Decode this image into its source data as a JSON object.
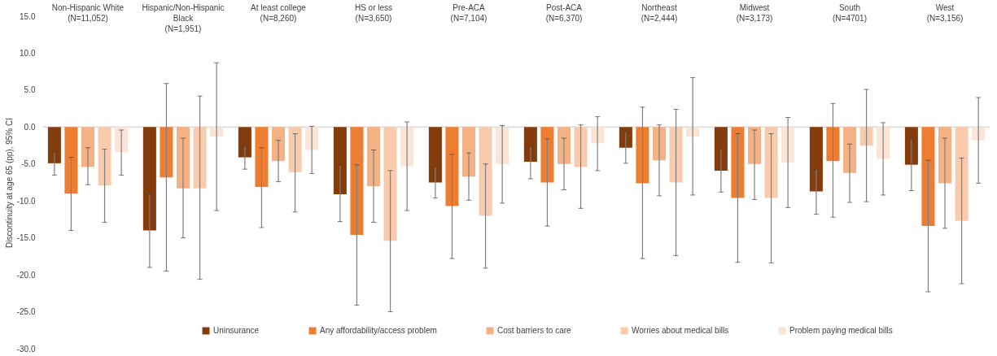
{
  "chart_data": {
    "type": "bar",
    "ylabel": "Discontinuity at age 65 (pp), 95% CI",
    "categories": [
      "Non-Hispanic White\n(N=11,052)",
      "Hispanic/Non-Hispanic\nBlack\n(N=1,951)",
      "At least college\n(N=8,260)",
      "HS or less\n(N=3,650)",
      "Pre-ACA\n(N=7,104)",
      "Post-ACA\n(N=6,370)",
      "Northeast\n(N=2,444)",
      "Midwest\n(N=3,173)",
      "South\n(N=4701)",
      "West\n(N=3,156)"
    ],
    "series": [
      {
        "name": "Uninsurance",
        "color": "#843c0c",
        "values": [
          -4.9,
          -14.0,
          -4.1,
          -9.1,
          -7.5,
          -4.7,
          -2.8,
          -5.9,
          -8.7,
          -5.1
        ],
        "errors": [
          [
            -6.5,
            -3.4
          ],
          [
            -19.0,
            -9.0
          ],
          [
            -5.7,
            -2.6
          ],
          [
            -12.8,
            -5.2
          ],
          [
            -9.6,
            -5.4
          ],
          [
            -7.0,
            -2.6
          ],
          [
            -4.9,
            -0.7
          ],
          [
            -8.8,
            -3.0
          ],
          [
            -11.8,
            -5.7
          ],
          [
            -8.6,
            -1.6
          ]
        ]
      },
      {
        "name": "Any affordability/access problem",
        "color": "#ed7d31",
        "values": [
          -9.0,
          -6.8,
          -8.1,
          -14.6,
          -10.7,
          -7.5,
          -7.6,
          -9.6,
          -4.6,
          -13.4
        ],
        "errors": [
          [
            -14.0,
            -4.1
          ],
          [
            -19.5,
            5.9
          ],
          [
            -13.6,
            -2.8
          ],
          [
            -24.1,
            -5.1
          ],
          [
            -17.8,
            -3.7
          ],
          [
            -13.4,
            -1.6
          ],
          [
            -17.8,
            2.7
          ],
          [
            -18.3,
            -0.9
          ],
          [
            -12.2,
            3.2
          ],
          [
            -22.3,
            -4.5
          ]
        ]
      },
      {
        "name": "Cost barriers to care",
        "color": "#f4b183",
        "values": [
          -5.4,
          -8.3,
          -4.6,
          -8.0,
          -6.7,
          -5.0,
          -4.5,
          -5.0,
          -6.2,
          -7.6
        ],
        "errors": [
          [
            -7.8,
            -2.8
          ],
          [
            -15.0,
            -1.5
          ],
          [
            -7.4,
            -1.8
          ],
          [
            -12.9,
            -3.1
          ],
          [
            -9.9,
            -3.5
          ],
          [
            -8.5,
            -1.5
          ],
          [
            -9.3,
            0.3
          ],
          [
            -9.8,
            -0.4
          ],
          [
            -10.2,
            -2.3
          ],
          [
            -13.7,
            -1.5
          ]
        ]
      },
      {
        "name": "Worries about medical bills",
        "color": "#f8cbad",
        "values": [
          -7.9,
          -8.3,
          -6.1,
          -15.4,
          -12.0,
          -5.4,
          -7.5,
          -9.6,
          -2.5,
          -12.7
        ],
        "errors": [
          [
            -12.9,
            -3.0
          ],
          [
            -20.6,
            4.2
          ],
          [
            -11.5,
            -0.9
          ],
          [
            -25.0,
            -5.9
          ],
          [
            -19.1,
            -5.0
          ],
          [
            -11.0,
            0.3
          ],
          [
            -17.4,
            2.4
          ],
          [
            -18.4,
            -0.9
          ],
          [
            -10.1,
            5.1
          ],
          [
            -21.2,
            -4.2
          ]
        ]
      },
      {
        "name": "Problem paying medical bills",
        "color": "#fbe5d6",
        "values": [
          -3.4,
          -1.3,
          -3.1,
          -5.3,
          -5.0,
          -2.2,
          -1.3,
          -4.8,
          -4.3,
          -1.8
        ],
        "errors": [
          [
            -6.5,
            -0.4
          ],
          [
            -11.3,
            8.7
          ],
          [
            -6.3,
            0.1
          ],
          [
            -11.3,
            0.7
          ],
          [
            -10.3,
            0.2
          ],
          [
            -5.9,
            1.4
          ],
          [
            -9.2,
            6.7
          ],
          [
            -10.9,
            1.3
          ],
          [
            -9.2,
            0.6
          ],
          [
            -7.6,
            4.0
          ]
        ]
      }
    ],
    "ylim": [
      -30,
      15
    ],
    "yticks": [
      {
        "value": -30,
        "label": "-30.0"
      },
      {
        "value": -25,
        "label": "-25.0"
      },
      {
        "value": -20,
        "label": "-20.0"
      },
      {
        "value": -15,
        "label": "-15.0"
      },
      {
        "value": -10,
        "label": "-10.0"
      },
      {
        "value": -5,
        "label": "-5.0"
      },
      {
        "value": 0,
        "label": "0.0"
      },
      {
        "value": 5,
        "label": "5.0"
      },
      {
        "value": 10,
        "label": "10.0"
      },
      {
        "value": 15,
        "label": "15.0"
      }
    ],
    "ref_lines": [
      {
        "axis": "y",
        "value": 0,
        "color": "#d9d9d9"
      }
    ],
    "grid": false,
    "legend": "bottom"
  }
}
